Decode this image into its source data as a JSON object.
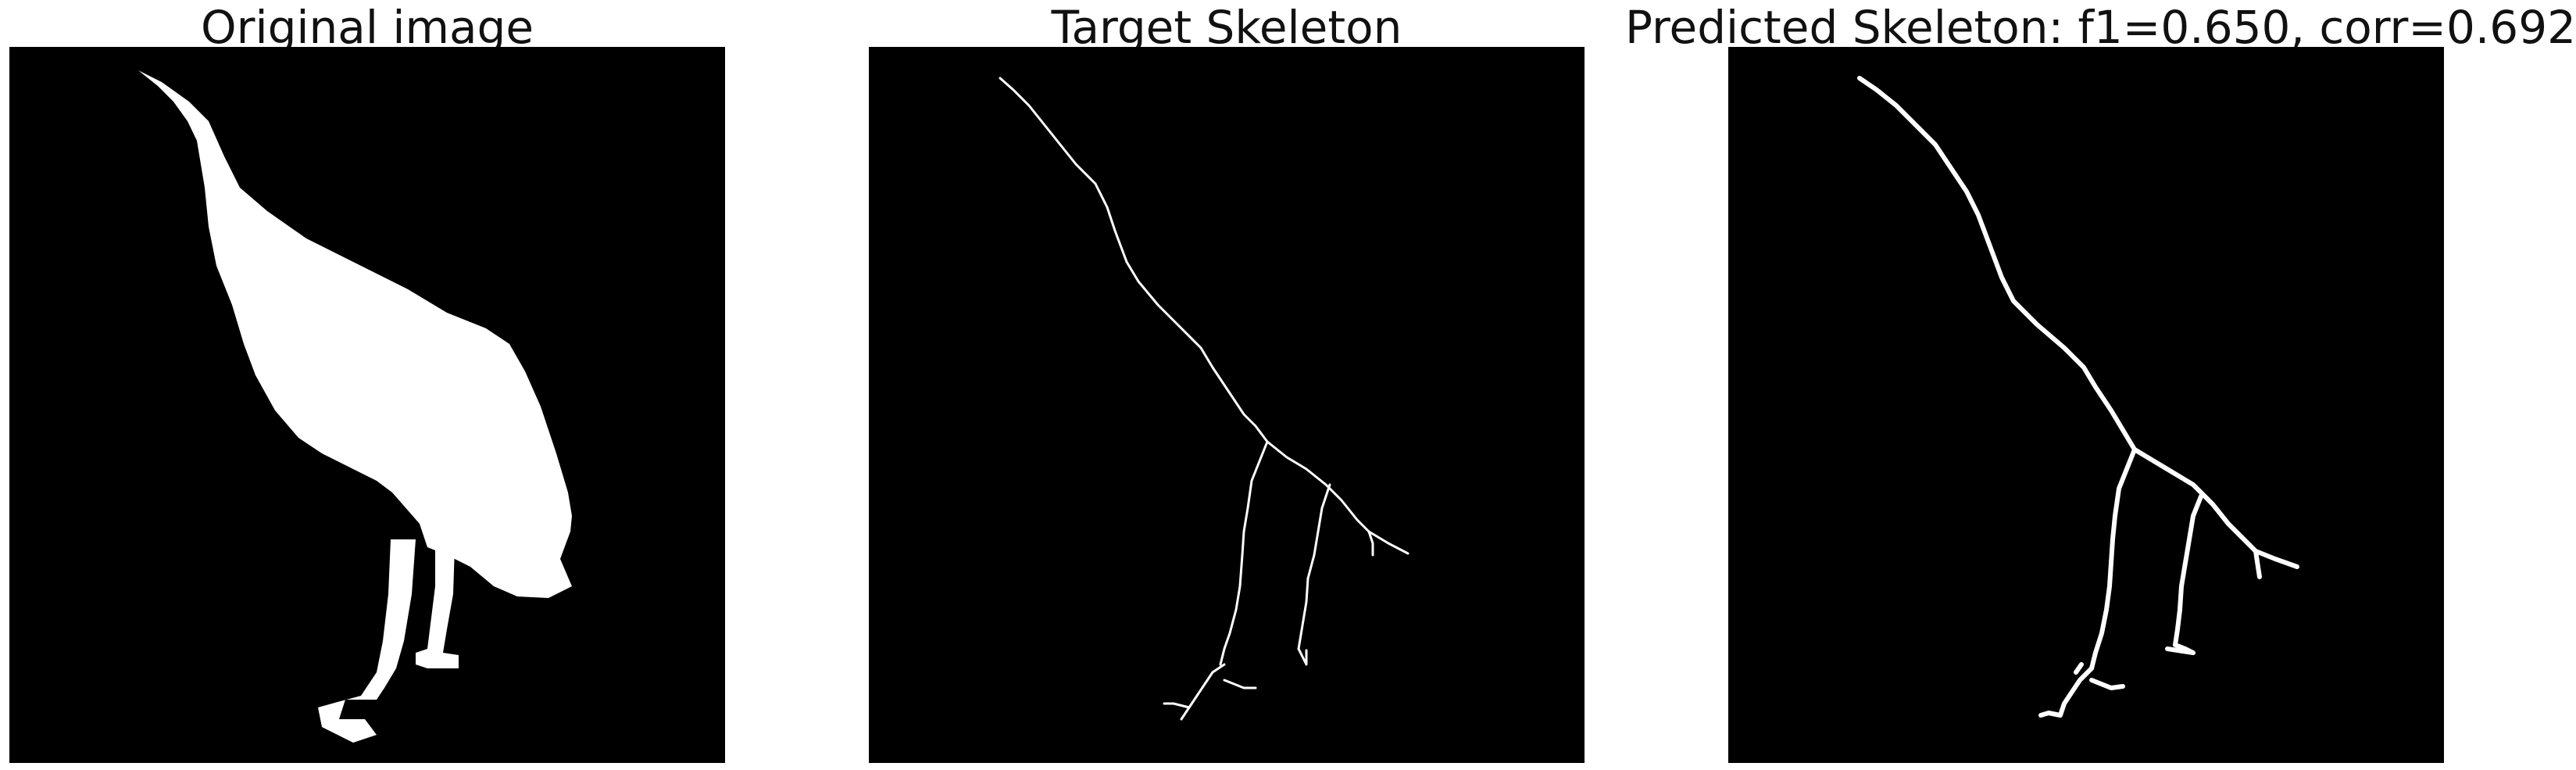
{
  "figure": {
    "panels": [
      {
        "title": "Original image"
      },
      {
        "title": "Target Skeleton"
      },
      {
        "title": "Predicted Skeleton: f1=0.650, corr=0.692"
      }
    ]
  },
  "colors": {
    "background": "#000000",
    "foreground": "#ffffff"
  }
}
